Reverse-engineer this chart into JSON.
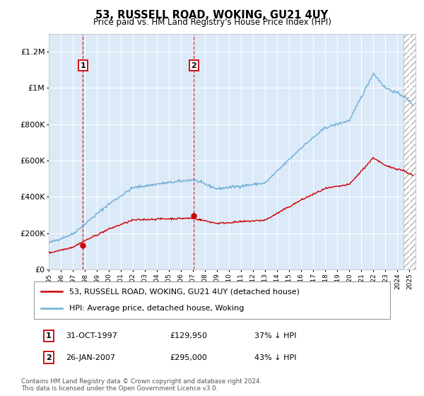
{
  "title": "53, RUSSELL ROAD, WOKING, GU21 4UY",
  "subtitle": "Price paid vs. HM Land Registry's House Price Index (HPI)",
  "background_color": "#ffffff",
  "plot_bg_color": "#dce9f7",
  "legend_entry1": "53, RUSSELL ROAD, WOKING, GU21 4UY (detached house)",
  "legend_entry2": "HPI: Average price, detached house, Woking",
  "footnote": "Contains HM Land Registry data © Crown copyright and database right 2024.\nThis data is licensed under the Open Government Licence v3.0.",
  "sale1_date": "31-OCT-1997",
  "sale1_price": "£129,950",
  "sale1_note": "37% ↓ HPI",
  "sale2_date": "26-JAN-2007",
  "sale2_price": "£295,000",
  "sale2_note": "43% ↓ HPI",
  "ylim": [
    0,
    1300000
  ],
  "xlim_start": 1995.0,
  "xlim_end": 2025.5,
  "hpi_color": "#6baed6",
  "price_color": "#cc0000",
  "vline_color": "#cc0000",
  "marker1_x": 1997.83,
  "marker1_y": 129950,
  "marker2_x": 2007.07,
  "marker2_y": 295000,
  "hatch_start": 2024.5,
  "hatch_end": 2025.5,
  "yticks": [
    0,
    200000,
    400000,
    600000,
    800000,
    1000000,
    1200000
  ],
  "ytick_labels": [
    "£0",
    "£200K",
    "£400K",
    "£600K",
    "£800K",
    "£1M",
    "£1.2M"
  ]
}
